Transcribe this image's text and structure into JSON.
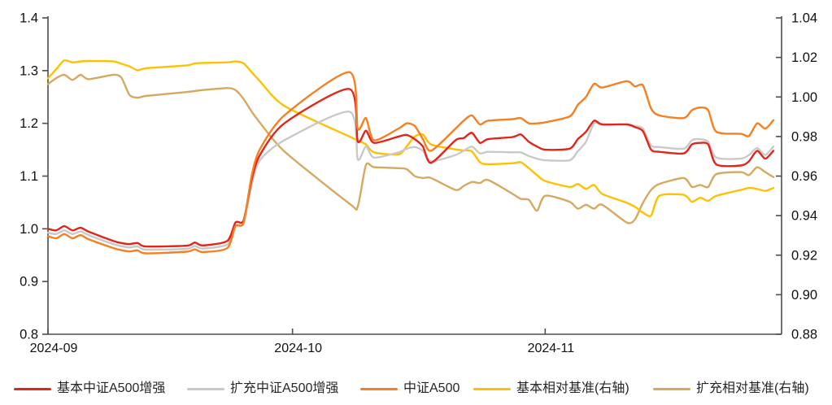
{
  "chart_data": {
    "type": "line",
    "title": "",
    "x_domain_days": [
      0,
      90
    ],
    "x_ticks": [
      {
        "label": "2024-09",
        "day": 0
      },
      {
        "label": "2024-10",
        "day": 30
      },
      {
        "label": "2024-11",
        "day": 61
      }
    ],
    "left_axis": {
      "ylim": [
        0.8,
        1.4
      ],
      "ticks": [
        {
          "label": "1.4",
          "value": 1.4
        },
        {
          "label": "1.3",
          "value": 1.3
        },
        {
          "label": "1.2",
          "value": 1.2
        },
        {
          "label": "1.1",
          "value": 1.1
        },
        {
          "label": "1.0",
          "value": 1.0
        },
        {
          "label": "0.9",
          "value": 0.9
        },
        {
          "label": "0.8",
          "value": 0.8
        }
      ]
    },
    "right_axis": {
      "ylim": [
        0.88,
        1.04
      ],
      "ticks": [
        {
          "label": "1.04",
          "value": 1.04
        },
        {
          "label": "1.02",
          "value": 1.02
        },
        {
          "label": "1.00",
          "value": 1.0
        },
        {
          "label": "0.98",
          "value": 0.98
        },
        {
          "label": "0.96",
          "value": 0.96
        },
        {
          "label": "0.94",
          "value": 0.94
        },
        {
          "label": "0.92",
          "value": 0.92
        },
        {
          "label": "0.90",
          "value": 0.9
        },
        {
          "label": "0.88",
          "value": 0.88
        }
      ]
    },
    "legend_position": "bottom",
    "grid": false,
    "days": [
      0,
      1,
      2,
      3,
      4,
      5,
      8,
      9,
      10,
      11,
      12,
      17,
      18,
      19,
      22,
      23,
      24,
      25,
      26,
      29,
      37,
      38,
      39,
      40,
      43,
      44,
      45,
      46,
      47,
      50,
      51,
      52,
      53,
      54,
      57,
      58,
      59,
      60,
      61,
      64,
      65,
      66,
      67,
      68,
      71,
      72,
      73,
      74,
      75,
      78,
      79,
      80,
      81,
      82,
      85,
      86,
      87,
      88,
      89
    ],
    "series": [
      {
        "name": "基本中证A500增强",
        "color": "#e1251b",
        "axis": "left",
        "values": [
          1.0,
          0.997,
          1.005,
          0.997,
          1.002,
          0.9945,
          0.977,
          0.973,
          0.971,
          0.973,
          0.9665,
          0.968,
          0.974,
          0.9685,
          0.977,
          1.012,
          1.016,
          1.094,
          1.14,
          1.2,
          1.265,
          1.166,
          1.186,
          1.163,
          1.175,
          1.178,
          1.17,
          1.156,
          1.125,
          1.168,
          1.172,
          1.182,
          1.163,
          1.17,
          1.174,
          1.179,
          1.165,
          1.156,
          1.15,
          1.152,
          1.17,
          1.184,
          1.205,
          1.198,
          1.198,
          1.193,
          1.185,
          1.15,
          1.146,
          1.143,
          1.16,
          1.163,
          1.16,
          1.122,
          1.12,
          1.128,
          1.148,
          1.133,
          1.148
        ]
      },
      {
        "name": "扩充中证A500增强",
        "color": "#c9c9c9",
        "axis": "left",
        "values": [
          0.9925,
          0.99,
          0.997,
          0.99,
          0.995,
          0.988,
          0.971,
          0.967,
          0.9645,
          0.9665,
          0.9605,
          0.962,
          0.9675,
          0.9625,
          0.9705,
          1.005,
          1.01,
          1.085,
          1.13,
          1.168,
          1.222,
          1.132,
          1.156,
          1.135,
          1.145,
          1.152,
          1.155,
          1.148,
          1.128,
          1.14,
          1.148,
          1.156,
          1.143,
          1.146,
          1.145,
          1.145,
          1.138,
          1.133,
          1.13,
          1.13,
          1.147,
          1.165,
          1.2,
          1.198,
          1.198,
          1.195,
          1.19,
          1.158,
          1.155,
          1.152,
          1.168,
          1.17,
          1.165,
          1.135,
          1.133,
          1.14,
          1.153,
          1.14,
          1.156
        ]
      },
      {
        "name": "中证A500",
        "color": "#f57f21",
        "axis": "left",
        "values": [
          0.986,
          0.982,
          0.99,
          0.982,
          0.988,
          0.98,
          0.9635,
          0.9595,
          0.957,
          0.959,
          0.9535,
          0.9565,
          0.961,
          0.956,
          0.9635,
          1.005,
          1.012,
          1.102,
          1.151,
          1.215,
          1.297,
          1.19,
          1.21,
          1.168,
          1.19,
          1.2,
          1.195,
          1.17,
          1.148,
          1.19,
          1.205,
          1.215,
          1.198,
          1.205,
          1.208,
          1.21,
          1.2,
          1.2,
          1.202,
          1.213,
          1.235,
          1.25,
          1.275,
          1.268,
          1.28,
          1.27,
          1.272,
          1.228,
          1.215,
          1.21,
          1.225,
          1.23,
          1.225,
          1.184,
          1.18,
          1.176,
          1.2,
          1.19,
          1.206
        ]
      },
      {
        "name": "基本相对基准(右轴)",
        "color": "#fec101",
        "axis": "right",
        "values": [
          1.0095,
          1.014,
          1.0185,
          1.0175,
          1.018,
          1.0182,
          1.018,
          1.0168,
          1.0155,
          1.0135,
          1.0145,
          1.016,
          1.017,
          1.0172,
          1.0175,
          1.018,
          1.017,
          1.0125,
          1.008,
          0.9955,
          0.98,
          0.978,
          0.976,
          0.972,
          0.971,
          0.975,
          0.98,
          0.981,
          0.976,
          0.9735,
          0.973,
          0.9725,
          0.967,
          0.966,
          0.9665,
          0.967,
          0.964,
          0.9605,
          0.9575,
          0.9545,
          0.956,
          0.9535,
          0.9555,
          0.951,
          0.9465,
          0.9445,
          0.9415,
          0.94,
          0.95,
          0.9505,
          0.947,
          0.949,
          0.9475,
          0.95,
          0.953,
          0.954,
          0.9535,
          0.9525,
          0.954
        ]
      },
      {
        "name": "扩充相对基准(右轴)",
        "color": "#d5a95f",
        "axis": "right",
        "values": [
          1.0065,
          1.0095,
          1.0112,
          1.0086,
          1.0112,
          1.009,
          1.0112,
          1.0098,
          1.001,
          0.9996,
          1.0005,
          1.0025,
          1.003,
          1.0035,
          1.0045,
          1.0035,
          0.999,
          0.9925,
          0.987,
          0.9725,
          0.946,
          0.9445,
          0.9655,
          0.9645,
          0.964,
          0.9635,
          0.96,
          0.959,
          0.959,
          0.953,
          0.955,
          0.957,
          0.9565,
          0.958,
          0.951,
          0.9485,
          0.948,
          0.9425,
          0.95,
          0.947,
          0.9435,
          0.9455,
          0.9435,
          0.9455,
          0.9365,
          0.938,
          0.9465,
          0.953,
          0.956,
          0.959,
          0.9545,
          0.9555,
          0.9545,
          0.961,
          0.962,
          0.9605,
          0.9645,
          0.962,
          0.9595
        ]
      }
    ]
  }
}
